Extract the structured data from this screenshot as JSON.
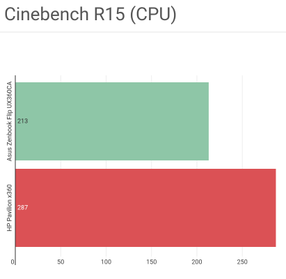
{
  "chart_data": {
    "type": "bar",
    "orientation": "horizontal",
    "title": "Cinebench R15 (CPU)",
    "categories": [
      "Asus Zenbook Flip UX360CA",
      "HP Pavilion x360"
    ],
    "values": [
      213,
      287
    ],
    "colors": [
      "#8ec6a7",
      "#db5155"
    ],
    "xlim": [
      0,
      292
    ],
    "xticks": [
      0,
      50,
      100,
      150,
      200,
      250
    ],
    "grid": true
  }
}
